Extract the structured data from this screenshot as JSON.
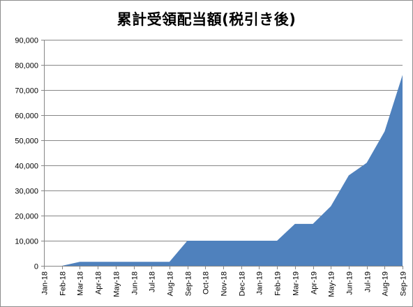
{
  "chart_data": {
    "type": "area",
    "title": "累計受領配当額(税引き後)",
    "xlabel": "",
    "ylabel": "",
    "categories": [
      "Jan-18",
      "Feb-18",
      "Mar-18",
      "Apr-18",
      "May-18",
      "Jun-18",
      "Jul-18",
      "Aug-18",
      "Sep-18",
      "Oct-18",
      "Nov-18",
      "Dec-18",
      "Jan-19",
      "Feb-19",
      "Mar-19",
      "Apr-19",
      "May-19",
      "Jun-19",
      "Jul-19",
      "Aug-19",
      "Sep-19"
    ],
    "values": [
      0,
      0,
      1600,
      1600,
      1600,
      1600,
      1600,
      1600,
      10000,
      10000,
      10000,
      10000,
      10000,
      10000,
      16700,
      16700,
      23700,
      36000,
      41000,
      53500,
      76000
    ],
    "ylim": [
      0,
      90000
    ],
    "yticks": [
      "0",
      "10,000",
      "20,000",
      "30,000",
      "40,000",
      "50,000",
      "60,000",
      "70,000",
      "80,000",
      "90,000"
    ],
    "ytick_values": [
      0,
      10000,
      20000,
      30000,
      40000,
      50000,
      60000,
      70000,
      80000,
      90000
    ],
    "grid": true,
    "legend": "none",
    "colors": {
      "area": "#4f81bd",
      "grid": "#868686",
      "axis": "#868686"
    }
  }
}
